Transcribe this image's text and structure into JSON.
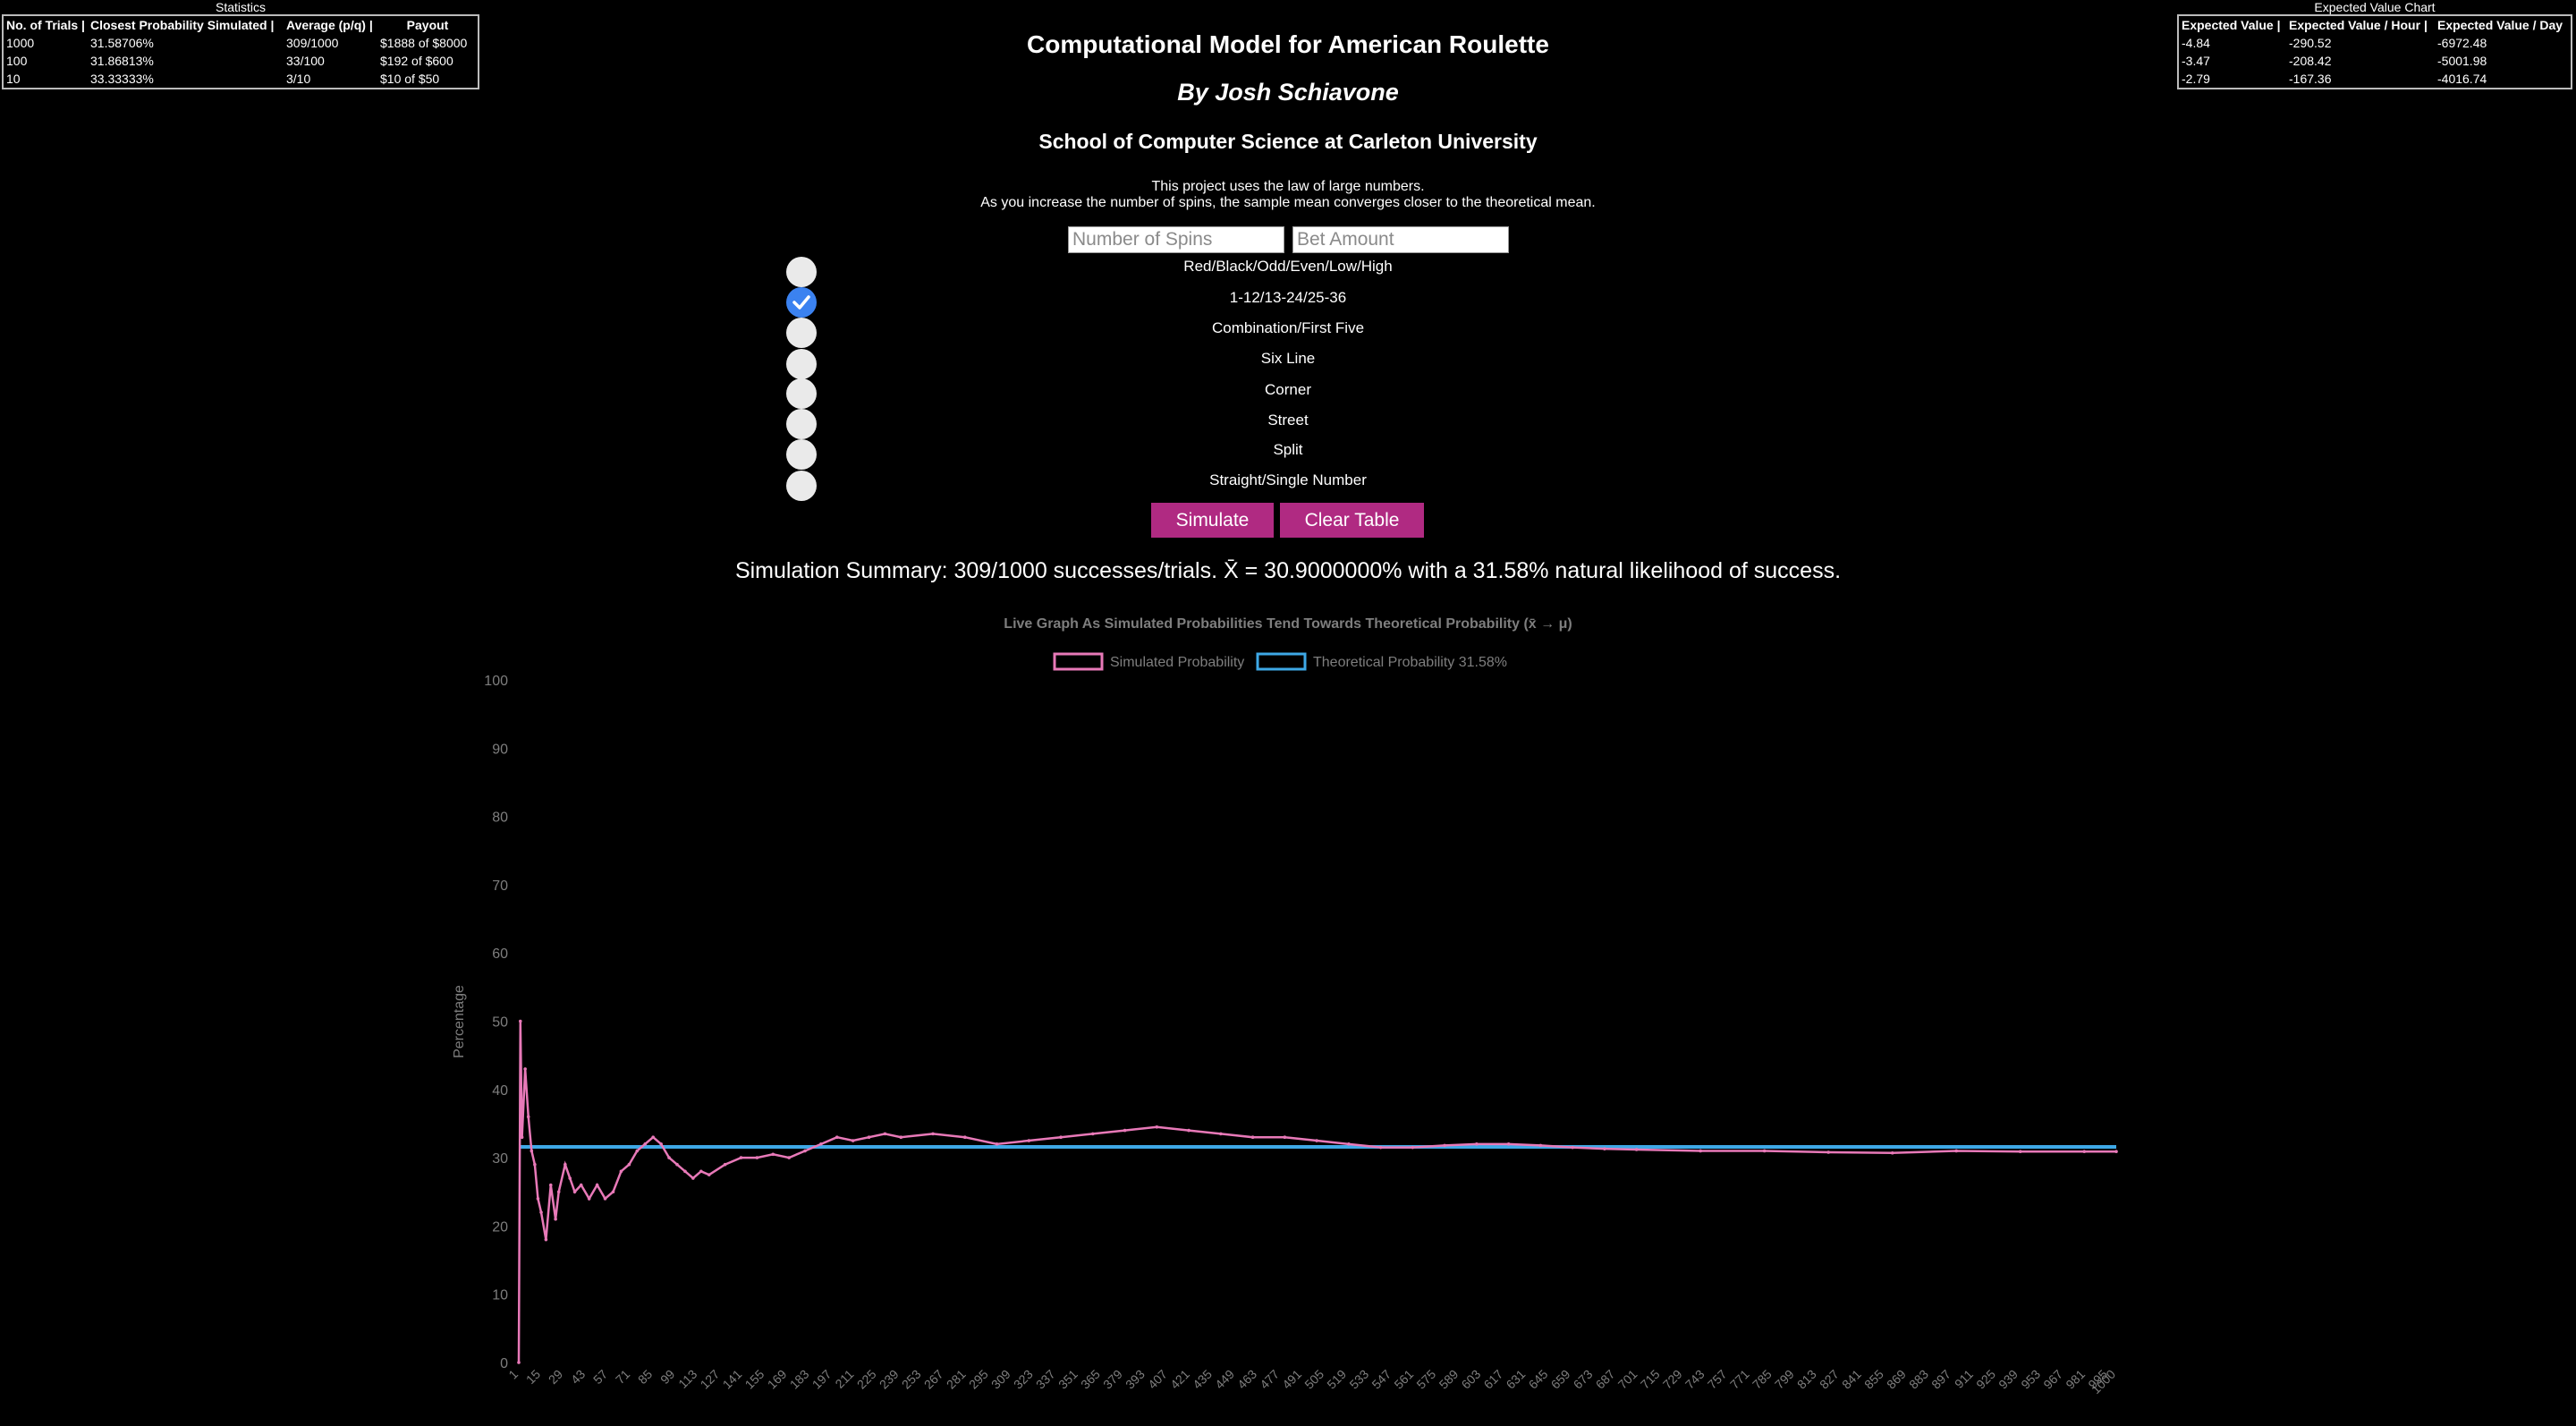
{
  "stats_table": {
    "caption": "Statistics",
    "headers": [
      "No. of Trials |",
      "Closest Probability Simulated |",
      "Average (p/q) |",
      "Payout"
    ],
    "rows": [
      [
        "1000",
        "31.58706%",
        "309/1000",
        "$1888 of $8000"
      ],
      [
        "100",
        "31.86813%",
        "33/100",
        "$192 of $600"
      ],
      [
        "10",
        "33.33333%",
        "3/10",
        "$10 of $50"
      ]
    ]
  },
  "ev_table": {
    "caption": "Expected Value Chart",
    "headers": [
      "Expected Value |",
      "Expected Value / Hour |",
      "Expected Value / Day"
    ],
    "rows": [
      [
        "-4.84",
        "-290.52",
        "-6972.48"
      ],
      [
        "-3.47",
        "-208.42",
        "-5001.98"
      ],
      [
        "-2.79",
        "-167.36",
        "-4016.74"
      ]
    ]
  },
  "header": {
    "title": "Computational Model for American Roulette",
    "author": "By Josh Schiavone",
    "school": "School of Computer Science at Carleton University",
    "desc1": "This project uses the law of large numbers.",
    "desc2": "As you increase the number of spins, the sample mean converges closer to the theoretical mean."
  },
  "inputs": {
    "spins_placeholder": "Number of Spins",
    "bet_placeholder": "Bet Amount"
  },
  "bet_options": [
    {
      "label": "Red/Black/Odd/Even/Low/High",
      "checked": false
    },
    {
      "label": "1-12/13-24/25-36",
      "checked": true
    },
    {
      "label": "Combination/First Five",
      "checked": false
    },
    {
      "label": "Six Line",
      "checked": false
    },
    {
      "label": "Corner",
      "checked": false
    },
    {
      "label": "Street",
      "checked": false
    },
    {
      "label": "Split",
      "checked": false
    },
    {
      "label": "Straight/Single Number",
      "checked": false
    }
  ],
  "buttons": {
    "simulate": "Simulate",
    "clear": "Clear Table"
  },
  "summary": "Simulation Summary: 309/1000 successes/trials. X̄ = 30.9000000% with a 31.58% natural likelihood of success.",
  "colors": {
    "simulated": "#e879b8",
    "theoretical": "#3ea8e6",
    "button": "#b02a82",
    "checkbox": "#3b82f0"
  },
  "chart_data": {
    "type": "line",
    "title": "Live Graph As Simulated Probabilities Tend Towards Theoretical Probability (x̄ → μ)",
    "xlabel": "",
    "ylabel": "Percentage",
    "ylim": [
      0,
      100
    ],
    "yticks": [
      0,
      10,
      20,
      30,
      40,
      50,
      60,
      70,
      80,
      90,
      100
    ],
    "x_range": [
      1,
      1000
    ],
    "x_tick_start": 1,
    "x_tick_step": 14,
    "x_tick_last": 1000,
    "legend_position": "top",
    "grid": false,
    "series": [
      {
        "name": "Simulated Probability",
        "x": [
          1,
          2,
          3,
          5,
          7,
          9,
          11,
          13,
          15,
          18,
          21,
          24,
          26,
          30,
          33,
          36,
          40,
          45,
          50,
          55,
          60,
          65,
          70,
          75,
          80,
          85,
          90,
          95,
          100,
          105,
          110,
          115,
          120,
          130,
          140,
          150,
          160,
          170,
          180,
          190,
          200,
          210,
          220,
          230,
          240,
          260,
          280,
          300,
          320,
          340,
          360,
          380,
          400,
          420,
          440,
          460,
          480,
          500,
          520,
          540,
          560,
          580,
          600,
          620,
          640,
          660,
          680,
          700,
          740,
          780,
          820,
          860,
          900,
          940,
          980,
          1000
        ],
        "values": [
          0,
          50,
          33,
          43,
          36,
          31,
          29,
          24,
          22,
          18,
          26,
          21,
          25,
          29,
          27,
          25,
          26,
          24,
          26,
          24,
          25,
          28,
          29,
          31,
          32,
          33,
          32,
          30,
          29,
          28,
          27,
          28,
          27.5,
          29,
          30,
          30,
          30.5,
          30,
          31,
          32,
          33,
          32.5,
          33,
          33.5,
          33,
          33.5,
          33,
          32,
          32.5,
          33,
          33.5,
          34,
          34.5,
          34,
          33.5,
          33,
          33,
          32.5,
          32,
          31.5,
          31.5,
          31.8,
          32,
          32,
          31.8,
          31.5,
          31.3,
          31.2,
          31,
          31,
          30.8,
          30.7,
          31,
          30.9,
          30.9,
          30.9
        ]
      },
      {
        "name": "Theoretical Probability 31.58%",
        "x": [
          1,
          1000
        ],
        "values": [
          31.58,
          31.58
        ]
      }
    ]
  }
}
